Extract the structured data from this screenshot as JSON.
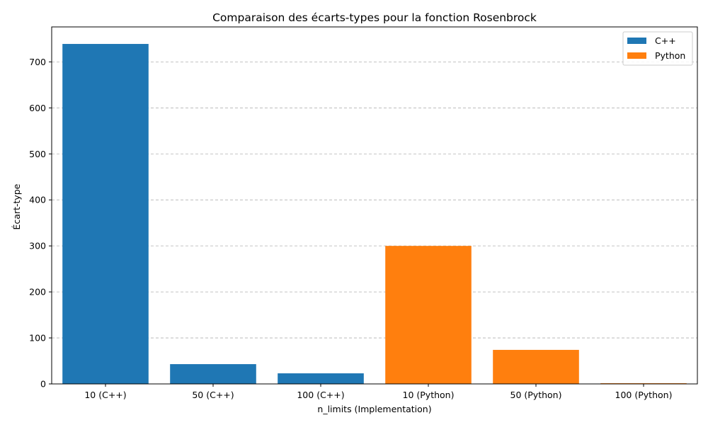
{
  "chart_data": {
    "type": "bar",
    "title": "Comparaison des écarts-types pour la fonction Rosenbrock",
    "xlabel": "n_limits (Implementation)",
    "ylabel": "Écart-type",
    "categories": [
      "10 (C++)",
      "50 (C++)",
      "100 (C++)",
      "10 (Python)",
      "50 (Python)",
      "100 (Python)"
    ],
    "series": [
      {
        "name": "C++",
        "color": "#1f77b4",
        "values": [
          739,
          43,
          23,
          null,
          null,
          null
        ]
      },
      {
        "name": "Python",
        "color": "#ff7f0e",
        "values": [
          null,
          null,
          null,
          300,
          74,
          1.5
        ]
      }
    ],
    "ylim": [
      0,
      776
    ],
    "yticks": [
      0,
      100,
      200,
      300,
      400,
      500,
      600,
      700
    ],
    "grid": "y-dashed",
    "legend_position": "top-right"
  }
}
